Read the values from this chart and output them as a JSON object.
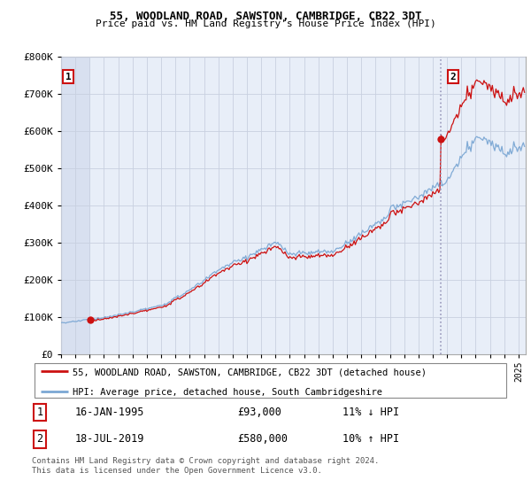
{
  "title": "55, WOODLAND ROAD, SAWSTON, CAMBRIDGE, CB22 3DT",
  "subtitle": "Price paid vs. HM Land Registry's House Price Index (HPI)",
  "ylabel_ticks": [
    "£0",
    "£100K",
    "£200K",
    "£300K",
    "£400K",
    "£500K",
    "£600K",
    "£700K",
    "£800K"
  ],
  "ytick_values": [
    0,
    100000,
    200000,
    300000,
    400000,
    500000,
    600000,
    700000,
    800000
  ],
  "ylim": [
    0,
    800000
  ],
  "xlim_start": 1993.0,
  "xlim_end": 2025.5,
  "sale1_x": 1995.04,
  "sale1_y": 93000,
  "sale2_x": 2019.54,
  "sale2_y": 580000,
  "bg_color": "#e8eef8",
  "hatch_bg_color": "#d8e0f0",
  "grid_color": "#c8d0e0",
  "hpi_color": "#7ba7d4",
  "sale_color": "#cc1111",
  "dashed_line_color": "#aaaacc",
  "legend_label1": "55, WOODLAND ROAD, SAWSTON, CAMBRIDGE, CB22 3DT (detached house)",
  "legend_label2": "HPI: Average price, detached house, South Cambridgeshire",
  "table_row1": [
    "1",
    "16-JAN-1995",
    "£93,000",
    "11% ↓ HPI"
  ],
  "table_row2": [
    "2",
    "18-JUL-2019",
    "£580,000",
    "10% ↑ HPI"
  ],
  "footer": "Contains HM Land Registry data © Crown copyright and database right 2024.\nThis data is licensed under the Open Government Licence v3.0."
}
